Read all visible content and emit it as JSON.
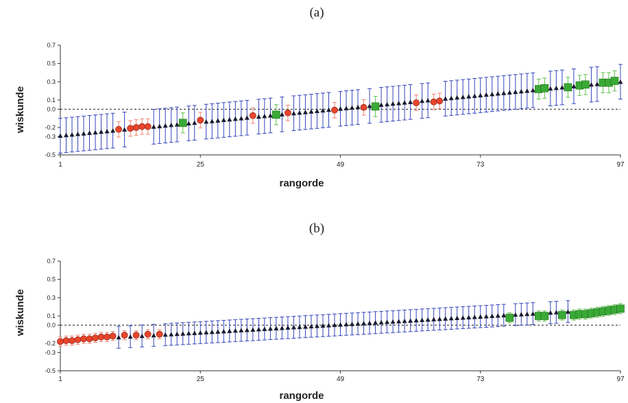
{
  "chart_data": [
    {
      "type": "scatter",
      "panel_label": "(a)",
      "xlabel": "rangorde",
      "ylabel": "wiskunde",
      "xlim": [
        1,
        97
      ],
      "ylim": [
        -0.5,
        0.7
      ],
      "xticks": [
        "1",
        "25",
        "49",
        "73",
        "97"
      ],
      "yticks": [
        "0.7",
        "0.5",
        "0.3",
        "0.1",
        "0.0",
        "-0.2",
        "-0.3",
        "-0.5"
      ],
      "reference_line_y": 0,
      "marker_colors": {
        "neutral": "#1a1a2e",
        "low": "#e8452c",
        "high": "#3aa935"
      },
      "errorbar_colors": {
        "neutral": "#3344bb",
        "low": "#f08070",
        "high": "#5cc04a"
      },
      "series": [
        {
          "name": "",
          "marker": "triangle",
          "color": "neutral",
          "start": -0.29,
          "end": 0.3,
          "half_ci": 0.19
        },
        {
          "name": "",
          "marker": "circle",
          "color": "low",
          "half_ci": 0.085,
          "points": [
            [
              11,
              -0.22
            ],
            [
              13,
              -0.21
            ],
            [
              14,
              -0.2
            ],
            [
              15,
              -0.19
            ],
            [
              16,
              -0.19
            ],
            [
              25,
              -0.12
            ],
            [
              34,
              -0.07
            ],
            [
              40,
              -0.04
            ],
            [
              48,
              -0.01
            ],
            [
              53,
              0.02
            ],
            [
              62,
              0.07
            ],
            [
              65,
              0.08
            ],
            [
              66,
              0.09
            ]
          ]
        },
        {
          "name": "",
          "marker": "square",
          "color": "high",
          "half_ci": 0.11,
          "points": [
            [
              22,
              -0.15
            ],
            [
              38,
              -0.06
            ],
            [
              55,
              0.03
            ],
            [
              83,
              0.22
            ],
            [
              84,
              0.23
            ],
            [
              88,
              0.24
            ],
            [
              90,
              0.26
            ],
            [
              91,
              0.27
            ],
            [
              94,
              0.29
            ],
            [
              95,
              0.29
            ],
            [
              96,
              0.31
            ]
          ]
        }
      ]
    },
    {
      "type": "scatter",
      "panel_label": "(b)",
      "xlabel": "rangorde",
      "ylabel": "wiskunde",
      "xlim": [
        1,
        97
      ],
      "ylim": [
        -0.5,
        0.7
      ],
      "xticks": [
        "1",
        "25",
        "49",
        "73",
        "97"
      ],
      "yticks": [
        "0.7",
        "0.5",
        "0.3",
        "0.1",
        "0.0",
        "-0.2",
        "-0.3",
        "-0.5"
      ],
      "reference_line_y": 0,
      "marker_colors": {
        "neutral": "#1a1a2e",
        "low": "#e8452c",
        "high": "#3aa935"
      },
      "errorbar_colors": {
        "neutral": "#3344bb",
        "low": "#f08070",
        "high": "#5cc04a"
      },
      "series": [
        {
          "name": "",
          "marker": "triangle",
          "color": "neutral",
          "start": -0.17,
          "end": 0.18,
          "half_ci": 0.12
        },
        {
          "name": "",
          "marker": "circle",
          "color": "low",
          "half_ci": 0.05,
          "points": [
            [
              1,
              -0.18
            ],
            [
              2,
              -0.17
            ],
            [
              3,
              -0.17
            ],
            [
              4,
              -0.16
            ],
            [
              5,
              -0.15
            ],
            [
              6,
              -0.15
            ],
            [
              7,
              -0.14
            ],
            [
              8,
              -0.13
            ],
            [
              9,
              -0.13
            ],
            [
              10,
              -0.12
            ],
            [
              12,
              -0.11
            ],
            [
              14,
              -0.11
            ],
            [
              16,
              -0.1
            ],
            [
              18,
              -0.1
            ]
          ]
        },
        {
          "name": "",
          "marker": "square",
          "color": "high",
          "half_ci": 0.055,
          "points": [
            [
              78,
              0.08
            ],
            [
              83,
              0.1
            ],
            [
              84,
              0.1
            ],
            [
              87,
              0.11
            ],
            [
              89,
              0.11
            ],
            [
              90,
              0.12
            ],
            [
              91,
              0.12
            ],
            [
              92,
              0.13
            ],
            [
              93,
              0.14
            ],
            [
              94,
              0.15
            ],
            [
              95,
              0.16
            ],
            [
              96,
              0.17
            ],
            [
              97,
              0.18
            ]
          ]
        }
      ]
    }
  ]
}
